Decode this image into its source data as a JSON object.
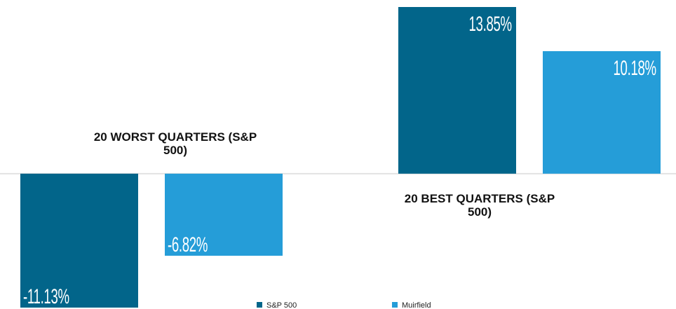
{
  "chart_data": {
    "type": "bar",
    "categories": [
      "20 WORST QUARTERS (S&P 500)",
      "20 BEST QUARTERS (S&P 500)"
    ],
    "series": [
      {
        "name": "S&P 500",
        "color": "#02658a",
        "values": [
          -11.13,
          13.85
        ],
        "value_labels": [
          "-11.13%",
          "13.85%"
        ]
      },
      {
        "name": "Muirfield",
        "color": "#259dd8",
        "values": [
          -6.82,
          10.18
        ],
        "value_labels": [
          "-6.82%",
          "10.18%"
        ]
      }
    ]
  }
}
